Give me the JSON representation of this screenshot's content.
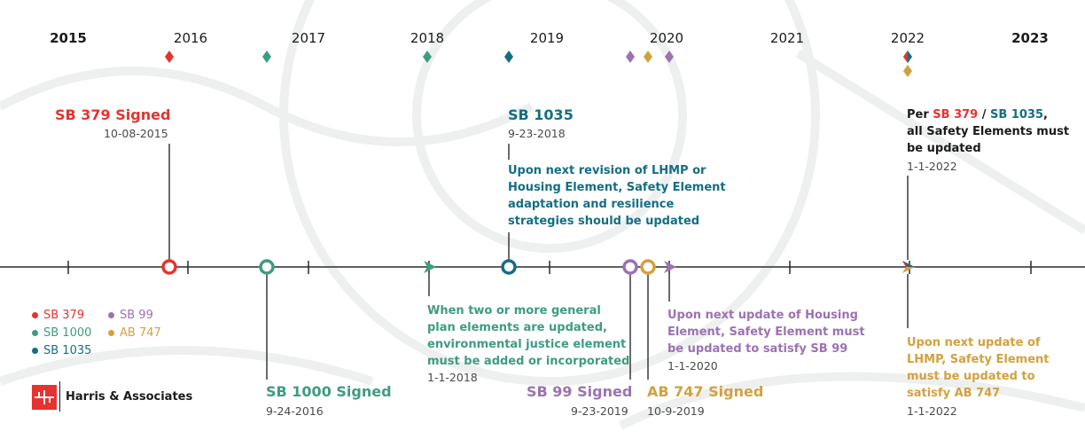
{
  "colors": {
    "sb379": "#e5332f",
    "sb1000": "#3d9c82",
    "sb1035": "#146e84",
    "sb99": "#9b72b2",
    "ab747": "#d2a13e",
    "axis": "#2a2a2a",
    "text": "#1b1b1b"
  },
  "years": [
    "2015",
    "2016",
    "2017",
    "2018",
    "2019",
    "2020",
    "2021",
    "2022",
    "2023"
  ],
  "events": {
    "sb379": {
      "title": "SB 379 Signed",
      "date": "10-08-2015"
    },
    "sb1035": {
      "title": "SB 1035",
      "date": "9-23-2018",
      "desc": [
        "Upon next revision of LHMP or",
        "Housing Element, Safety Element",
        "adaptation and resilience",
        "strategies should be updated"
      ]
    },
    "sb1000": {
      "title": "SB 1000 Signed",
      "date": "9-24-2016"
    },
    "ej2018": {
      "desc": [
        "When two or more general",
        "plan elements are updated,",
        "environmental justice element",
        "must be added or incorporated"
      ],
      "date": "1-1-2018"
    },
    "sb99": {
      "title": "SB 99 Signed",
      "date": "9-23-2019"
    },
    "ab747": {
      "title": "AB 747 Signed",
      "date": "10-9-2019"
    },
    "housing2020": {
      "desc": [
        "Upon next update of Housing",
        "Element, Safety Element must",
        "be updated to satisfy SB 99"
      ],
      "date": "1-1-2020"
    },
    "per2022": {
      "prefix": "Per ",
      "sb379": "SB 379",
      "slash": " / ",
      "sb1035": "SB 1035",
      "comma": ",",
      "rest": [
        "all Safety Elements must",
        "be updated"
      ],
      "date": "1-1-2022"
    },
    "lhmp2022": {
      "desc": [
        "Upon next update of",
        "LHMP, Safety Element",
        "must be updated to",
        "satisfy AB 747"
      ],
      "date": "1-1-2022"
    }
  },
  "legend": {
    "items": [
      "SB 379",
      "SB 99",
      "SB 1000",
      "AB 747",
      "SB 1035"
    ]
  },
  "logo": {
    "name": "Harris & Associates"
  }
}
